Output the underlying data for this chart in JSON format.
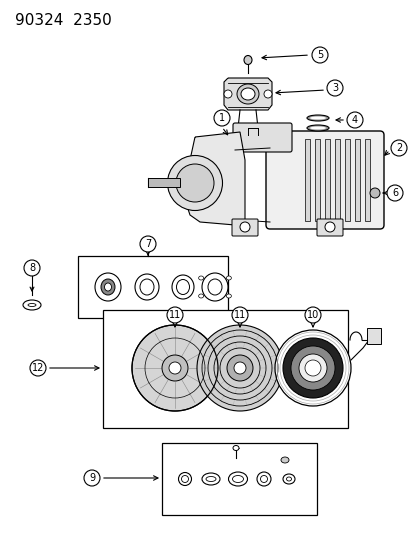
{
  "title": "90324  2350",
  "bg_color": "#ffffff",
  "line_color": "#000000",
  "fig_width": 4.14,
  "fig_height": 5.33,
  "dpi": 100,
  "title_fontsize": 11,
  "label_fontsize": 7,
  "label_circle_r": 8
}
